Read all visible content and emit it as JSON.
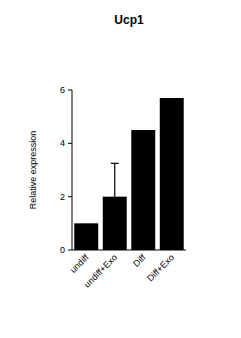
{
  "chart_data": {
    "type": "bar",
    "title": "Ucp1",
    "y_label": "Relative expression",
    "categories": [
      "undiff",
      "undiff+Exo",
      "Diff",
      "Diff+Exo"
    ],
    "values": [
      1,
      2,
      4.5,
      5.7
    ],
    "errors": [
      null,
      1.25,
      null,
      null
    ],
    "color": "#000000",
    "ylim": [
      0,
      6
    ],
    "yticks": [
      0,
      2,
      4,
      6
    ],
    "grid": false
  }
}
